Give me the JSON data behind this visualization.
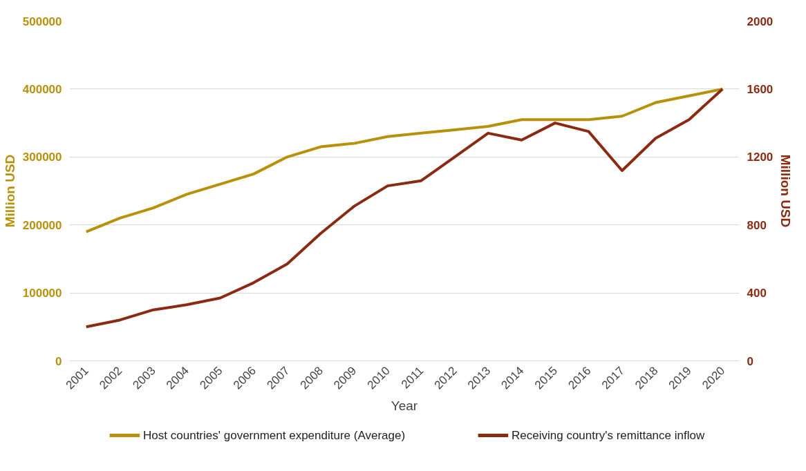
{
  "chart_data": {
    "type": "line",
    "xlabel": "Year",
    "ylabel": "Million USD",
    "y2label": "Million USD",
    "categories": [
      "2001",
      "2002",
      "2003",
      "2004",
      "2005",
      "2006",
      "2007",
      "2008",
      "2009",
      "2010",
      "2011",
      "2012",
      "2013",
      "2014",
      "2015",
      "2016",
      "2017",
      "2018",
      "2019",
      "2020"
    ],
    "series": [
      {
        "name": "Host countries' government expenditure (Average)",
        "color": "#b8900a",
        "values": [
          190000,
          210000,
          225000,
          245000,
          260000,
          275000,
          300000,
          315000,
          320000,
          330000,
          335000,
          340000,
          345000,
          355000,
          355000,
          355000,
          360000,
          380000,
          390000,
          400000
        ]
      },
      {
        "name": "Receiving country's remittance inflow",
        "color": "#8b2a12",
        "axis": "y2",
        "values": [
          200,
          240,
          300,
          330,
          370,
          460,
          570,
          750,
          910,
          1030,
          1060,
          1200,
          1340,
          1300,
          1400,
          1350,
          1120,
          1310,
          1420,
          1600
        ]
      }
    ],
    "ylim": [
      0,
      500000
    ],
    "yticks": [
      0,
      100000,
      200000,
      300000,
      400000,
      500000
    ],
    "y2lim": [
      0,
      2000
    ],
    "y2ticks": [
      0,
      400,
      800,
      1200,
      1600,
      2000
    ],
    "grid": "y",
    "legend": "bottom",
    "marker": "none",
    "line_style": "solid"
  }
}
